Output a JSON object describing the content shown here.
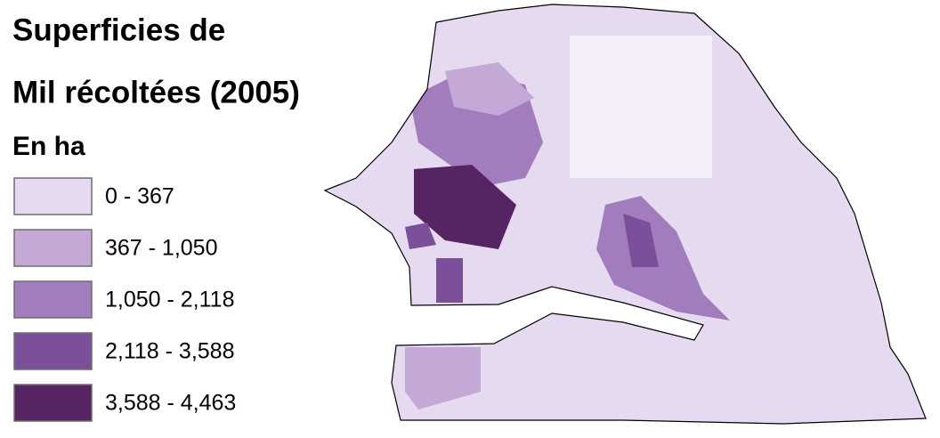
{
  "title": [
    "Superficies de",
    "Mil récoltées (2005)"
  ],
  "unit": "En ha",
  "legend": [
    {
      "label": "0 - 367",
      "color": "#e6daf0"
    },
    {
      "label": "367 - 1,050",
      "color": "#c4a9d6"
    },
    {
      "label": "1,050 - 2,118",
      "color": "#a17dbd"
    },
    {
      "label": "2,118 - 3,588",
      "color": "#7b4f9a"
    },
    {
      "label": "3,588 - 4,463",
      "color": "#562462"
    }
  ]
}
